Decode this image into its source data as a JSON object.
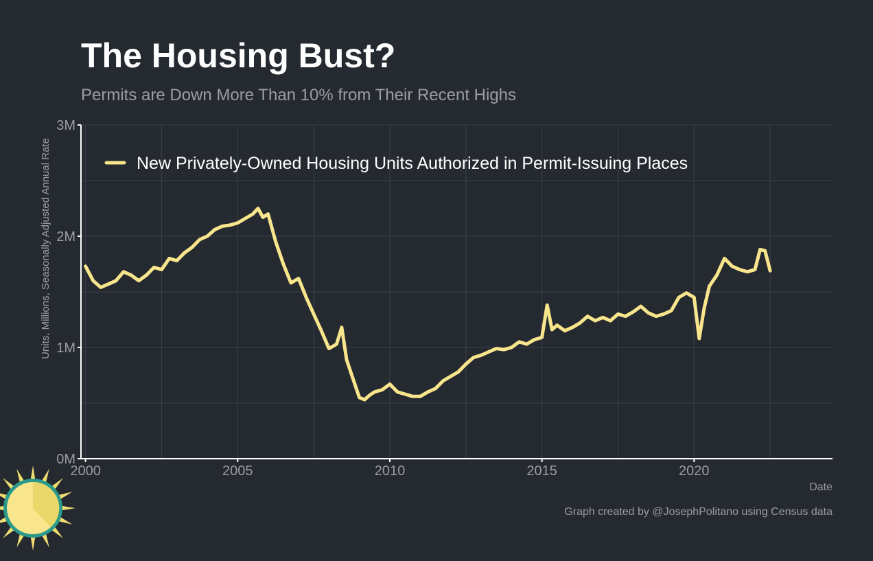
{
  "header": {
    "title": "The Housing Bust?",
    "subtitle": "Permits are Down More Than 10% from Their Recent Highs"
  },
  "footer": {
    "credit": "Graph created by @JosephPolitano using Census data"
  },
  "colors": {
    "background": "#252a31",
    "line": "#f8e58c",
    "title": "#ffffff",
    "subtitle": "#9a9ea4",
    "axis_text": "#9a9ea4",
    "grid": "#3b4048",
    "axis_line": "#ffffff",
    "legend_text": "#ffffff",
    "logo_sun": "#f0dd70",
    "logo_ring": "#2a9a8c"
  },
  "chart_data": {
    "type": "line",
    "title": "The Housing Bust?",
    "subtitle": "Permits are Down More Than 10% from Their Recent Highs",
    "xlabel": "Date",
    "ylabel": "Units, Millions, Seasonally Adjusted Annual Rate",
    "x_ticks": [
      "2000",
      "2005",
      "2010",
      "2015",
      "2020"
    ],
    "x_tick_values": [
      2000,
      2005,
      2010,
      2015,
      2020
    ],
    "y_ticks": [
      "0M",
      "1M",
      "2M",
      "3M"
    ],
    "y_tick_values": [
      0,
      1,
      2,
      3
    ],
    "xlim": [
      1999.85,
      2024.55
    ],
    "ylim": [
      0,
      3
    ],
    "grid": true,
    "legend": {
      "position": "top-left",
      "entries": [
        "New Privately-Owned Housing Units Authorized in Permit-Issuing Places"
      ]
    },
    "series": [
      {
        "name": "New Privately-Owned Housing Units Authorized in Permit-Issuing Places",
        "x": [
          2000.0,
          2000.25,
          2000.5,
          2000.75,
          2001.0,
          2001.25,
          2001.5,
          2001.75,
          2002.0,
          2002.25,
          2002.5,
          2002.75,
          2003.0,
          2003.25,
          2003.5,
          2003.75,
          2004.0,
          2004.25,
          2004.5,
          2004.75,
          2005.0,
          2005.25,
          2005.5,
          2005.67,
          2005.83,
          2006.0,
          2006.25,
          2006.5,
          2006.75,
          2007.0,
          2007.25,
          2007.5,
          2007.75,
          2008.0,
          2008.25,
          2008.42,
          2008.58,
          2008.75,
          2009.0,
          2009.17,
          2009.33,
          2009.5,
          2009.75,
          2010.0,
          2010.25,
          2010.5,
          2010.75,
          2011.0,
          2011.25,
          2011.5,
          2011.75,
          2012.0,
          2012.25,
          2012.5,
          2012.75,
          2013.0,
          2013.25,
          2013.5,
          2013.75,
          2014.0,
          2014.25,
          2014.5,
          2014.75,
          2015.0,
          2015.17,
          2015.33,
          2015.5,
          2015.75,
          2016.0,
          2016.25,
          2016.5,
          2016.75,
          2017.0,
          2017.25,
          2017.5,
          2017.75,
          2018.0,
          2018.25,
          2018.5,
          2018.75,
          2019.0,
          2019.25,
          2019.5,
          2019.75,
          2020.0,
          2020.17,
          2020.33,
          2020.5,
          2020.75,
          2021.0,
          2021.25,
          2021.5,
          2021.75,
          2022.0,
          2022.17,
          2022.33,
          2022.5
        ],
        "values": [
          1.73,
          1.6,
          1.54,
          1.57,
          1.6,
          1.68,
          1.65,
          1.6,
          1.65,
          1.72,
          1.7,
          1.8,
          1.78,
          1.85,
          1.9,
          1.97,
          2.0,
          2.06,
          2.09,
          2.1,
          2.12,
          2.16,
          2.2,
          2.25,
          2.17,
          2.2,
          1.95,
          1.75,
          1.58,
          1.62,
          1.45,
          1.3,
          1.15,
          0.99,
          1.03,
          1.18,
          0.89,
          0.75,
          0.55,
          0.53,
          0.57,
          0.6,
          0.62,
          0.67,
          0.6,
          0.58,
          0.56,
          0.56,
          0.6,
          0.63,
          0.7,
          0.74,
          0.78,
          0.85,
          0.91,
          0.93,
          0.96,
          0.99,
          0.98,
          1.0,
          1.05,
          1.03,
          1.07,
          1.09,
          1.38,
          1.16,
          1.2,
          1.15,
          1.18,
          1.22,
          1.28,
          1.24,
          1.27,
          1.24,
          1.3,
          1.28,
          1.32,
          1.37,
          1.31,
          1.28,
          1.3,
          1.33,
          1.45,
          1.49,
          1.45,
          1.08,
          1.35,
          1.55,
          1.65,
          1.8,
          1.73,
          1.7,
          1.68,
          1.7,
          1.88,
          1.87,
          1.69
        ]
      }
    ]
  }
}
